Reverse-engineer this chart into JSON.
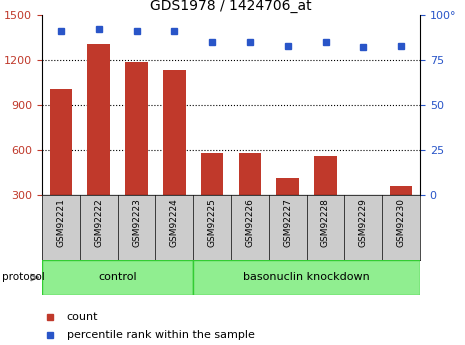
{
  "title": "GDS1978 / 1424706_at",
  "samples": [
    "GSM92221",
    "GSM92222",
    "GSM92223",
    "GSM92224",
    "GSM92225",
    "GSM92226",
    "GSM92227",
    "GSM92228",
    "GSM92229",
    "GSM92230"
  ],
  "counts": [
    1005,
    1305,
    1185,
    1130,
    578,
    578,
    415,
    558,
    298,
    358
  ],
  "percentiles": [
    91,
    92,
    91,
    91,
    85,
    85,
    83,
    85,
    82,
    83
  ],
  "bar_color": "#c0392b",
  "dot_color": "#2955c8",
  "ylim_left": [
    300,
    1500
  ],
  "ylim_right": [
    0,
    100
  ],
  "yticks_left": [
    300,
    600,
    900,
    1200,
    1500
  ],
  "yticks_right": [
    0,
    25,
    50,
    75,
    100
  ],
  "ytick_right_labels": [
    "0",
    "25",
    "50",
    "75",
    "100°"
  ],
  "grid_values": [
    600,
    900,
    1200
  ],
  "n_control": 4,
  "n_knockdown": 6,
  "group_labels": [
    "control",
    "basonuclin knockdown"
  ],
  "group_facecolor": "#90ee90",
  "group_edgecolor": "#33cc33",
  "protocol_label": "protocol",
  "legend_labels": [
    "count",
    "percentile rank within the sample"
  ],
  "sample_bg_color": "#cccccc",
  "sample_line_color": "#999999"
}
